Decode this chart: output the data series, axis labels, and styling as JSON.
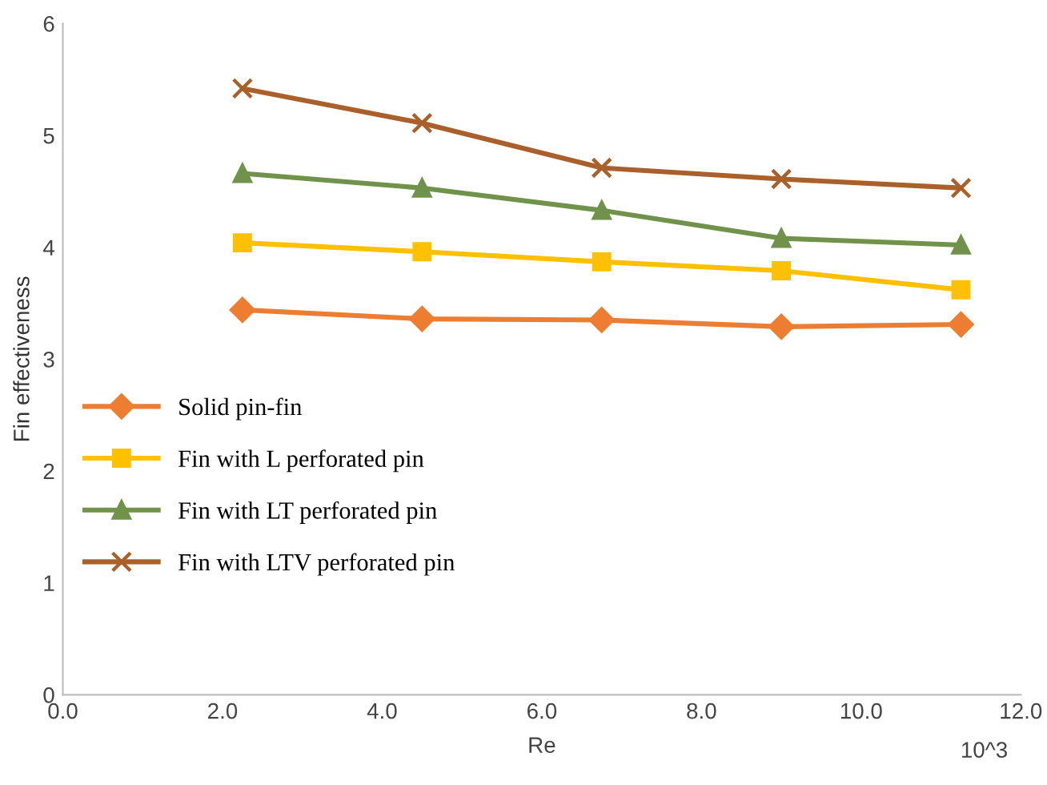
{
  "chart_data": {
    "type": "line",
    "xlabel": "Re",
    "ylabel": "Fin effectiveness",
    "x": [
      2.25,
      4.5,
      6.75,
      9.0,
      11.25
    ],
    "series": [
      {
        "name": "Solid pin-fin",
        "color": "#ed7d31",
        "marker": "diamond",
        "values": [
          3.44,
          3.36,
          3.35,
          3.29,
          3.31
        ]
      },
      {
        "name": "Fin with L perforated pin",
        "color": "#ffc000",
        "marker": "square",
        "values": [
          4.04,
          3.96,
          3.87,
          3.79,
          3.62
        ]
      },
      {
        "name": "Fin with LT perforated pin",
        "color": "#70924a",
        "marker": "triangle",
        "values": [
          4.66,
          4.53,
          4.33,
          4.08,
          4.02
        ]
      },
      {
        "name": "Fin with LTV perforated pin",
        "color": "#a9602a",
        "marker": "cross",
        "values": [
          5.42,
          5.11,
          4.71,
          4.61,
          4.53
        ]
      }
    ],
    "xlim": [
      0,
      12
    ],
    "xticks": [
      {
        "value": 0,
        "label": "0.0"
      },
      {
        "value": 2,
        "label": "2.0"
      },
      {
        "value": 4,
        "label": "4.0"
      },
      {
        "value": 6,
        "label": "6.0"
      },
      {
        "value": 8,
        "label": "8.0"
      },
      {
        "value": 10,
        "label": "10.0"
      },
      {
        "value": 12,
        "label": "12.0"
      }
    ],
    "ylim": [
      0,
      6
    ],
    "yticks": [
      0,
      1,
      2,
      3,
      4,
      5,
      6
    ],
    "annotations": [
      "10^3"
    ],
    "grid": false,
    "legend": "left",
    "line_style": "solid"
  }
}
